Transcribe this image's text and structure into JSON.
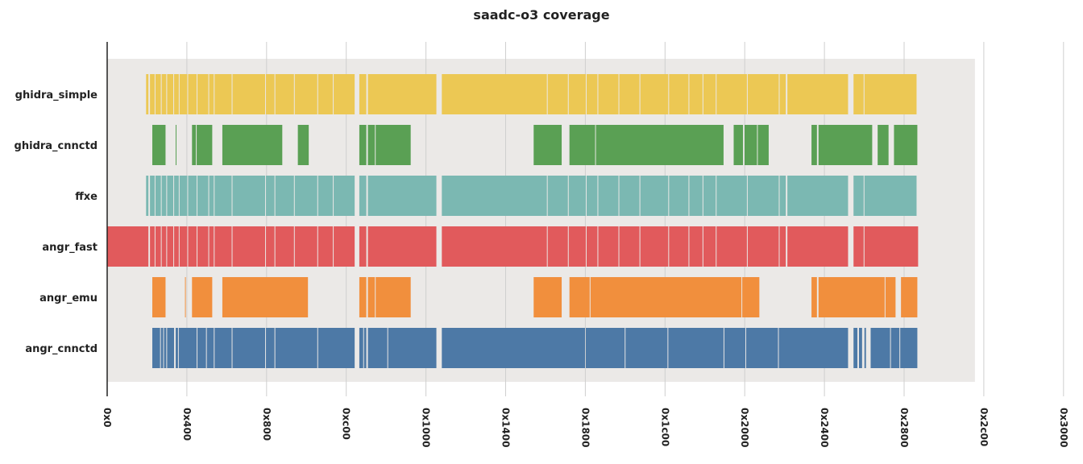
{
  "chart_data": {
    "type": "bar",
    "orientation": "horizontal-intervals",
    "title": "saadc-o3 coverage",
    "xlabel": "",
    "ylabel": "",
    "xlim": [
      0,
      12288
    ],
    "grid": true,
    "legend": "none",
    "x_ticks": [
      {
        "value": 0,
        "label": "0x0"
      },
      {
        "value": 1024,
        "label": "0x400"
      },
      {
        "value": 2048,
        "label": "0x800"
      },
      {
        "value": 3072,
        "label": "0xc00"
      },
      {
        "value": 4096,
        "label": "0x1000"
      },
      {
        "value": 5120,
        "label": "0x1400"
      },
      {
        "value": 6144,
        "label": "0x1800"
      },
      {
        "value": 7168,
        "label": "0x1c00"
      },
      {
        "value": 8192,
        "label": "0x2000"
      },
      {
        "value": 9216,
        "label": "0x2400"
      },
      {
        "value": 10240,
        "label": "0x2800"
      },
      {
        "value": 11264,
        "label": "0x2c00"
      },
      {
        "value": 12288,
        "label": "0x3000"
      }
    ],
    "background_range": [
      0,
      11150
    ],
    "series": [
      {
        "name": "ghidra_simple",
        "color": "#ecc854",
        "segments": [
          [
            500,
            530
          ],
          [
            550,
            610
          ],
          [
            620,
            690
          ],
          [
            700,
            760
          ],
          [
            770,
            850
          ],
          [
            860,
            920
          ],
          [
            930,
            1030
          ],
          [
            1040,
            1150
          ],
          [
            1160,
            1300
          ],
          [
            1310,
            1370
          ],
          [
            1380,
            1600
          ],
          [
            1610,
            2030
          ],
          [
            2040,
            2150
          ],
          [
            2160,
            2400
          ],
          [
            2410,
            2700
          ],
          [
            2710,
            2900
          ],
          [
            2910,
            3180
          ],
          [
            3240,
            3330
          ],
          [
            3350,
            4230
          ],
          [
            4300,
            5650
          ],
          [
            5660,
            5920
          ],
          [
            5930,
            6150
          ],
          [
            6160,
            6300
          ],
          [
            6310,
            6570
          ],
          [
            6580,
            6840
          ],
          [
            6850,
            7210
          ],
          [
            7220,
            7470
          ],
          [
            7480,
            7650
          ],
          [
            7660,
            7820
          ],
          [
            7830,
            8220
          ],
          [
            8230,
            8630
          ],
          [
            8640,
            8720
          ],
          [
            8740,
            9520
          ],
          [
            9590,
            9720
          ],
          [
            9730,
            10400
          ]
        ]
      },
      {
        "name": "ghidra_cnnctd",
        "color": "#5aa054",
        "segments": [
          [
            580,
            750
          ],
          [
            880,
            890
          ],
          [
            1090,
            1140
          ],
          [
            1150,
            1350
          ],
          [
            1480,
            2250
          ],
          [
            2450,
            2590
          ],
          [
            3240,
            3330
          ],
          [
            3350,
            3440
          ],
          [
            3450,
            3900
          ],
          [
            5480,
            5840
          ],
          [
            5940,
            6270
          ],
          [
            6280,
            7920
          ],
          [
            8050,
            8170
          ],
          [
            8190,
            8350
          ],
          [
            8360,
            8500
          ],
          [
            9050,
            9120
          ],
          [
            9140,
            9830
          ],
          [
            9900,
            10040
          ],
          [
            10110,
            10410
          ]
        ]
      },
      {
        "name": "ffxe",
        "color": "#7bb8b2",
        "segments": [
          [
            500,
            530
          ],
          [
            550,
            610
          ],
          [
            620,
            690
          ],
          [
            700,
            760
          ],
          [
            770,
            850
          ],
          [
            860,
            920
          ],
          [
            930,
            1030
          ],
          [
            1040,
            1150
          ],
          [
            1160,
            1300
          ],
          [
            1310,
            1370
          ],
          [
            1380,
            1600
          ],
          [
            1610,
            2030
          ],
          [
            2040,
            2150
          ],
          [
            2160,
            2400
          ],
          [
            2410,
            2700
          ],
          [
            2710,
            2900
          ],
          [
            2910,
            3180
          ],
          [
            3240,
            3330
          ],
          [
            3350,
            4230
          ],
          [
            4300,
            5650
          ],
          [
            5660,
            5920
          ],
          [
            5930,
            6150
          ],
          [
            6160,
            6300
          ],
          [
            6310,
            6570
          ],
          [
            6580,
            6840
          ],
          [
            6850,
            7210
          ],
          [
            7220,
            7470
          ],
          [
            7480,
            7650
          ],
          [
            7660,
            7820
          ],
          [
            7830,
            8220
          ],
          [
            8230,
            8630
          ],
          [
            8640,
            8720
          ],
          [
            8740,
            9520
          ],
          [
            9590,
            9720
          ],
          [
            9730,
            10400
          ]
        ]
      },
      {
        "name": "angr_fast",
        "color": "#e15a5c",
        "segments": [
          [
            0,
            530
          ],
          [
            550,
            610
          ],
          [
            620,
            690
          ],
          [
            700,
            760
          ],
          [
            770,
            850
          ],
          [
            860,
            920
          ],
          [
            930,
            1030
          ],
          [
            1040,
            1150
          ],
          [
            1160,
            1300
          ],
          [
            1310,
            1370
          ],
          [
            1380,
            1600
          ],
          [
            1610,
            2030
          ],
          [
            2040,
            2150
          ],
          [
            2160,
            2400
          ],
          [
            2410,
            2700
          ],
          [
            2710,
            2900
          ],
          [
            2910,
            3180
          ],
          [
            3240,
            3330
          ],
          [
            3350,
            4230
          ],
          [
            4300,
            5650
          ],
          [
            5660,
            5920
          ],
          [
            5930,
            6150
          ],
          [
            6160,
            6300
          ],
          [
            6310,
            6570
          ],
          [
            6580,
            6840
          ],
          [
            6850,
            7210
          ],
          [
            7220,
            7470
          ],
          [
            7480,
            7650
          ],
          [
            7660,
            7820
          ],
          [
            7830,
            8220
          ],
          [
            8230,
            8630
          ],
          [
            8640,
            8720
          ],
          [
            8740,
            9520
          ],
          [
            9590,
            9720
          ],
          [
            9730,
            10420
          ]
        ]
      },
      {
        "name": "angr_emu",
        "color": "#f18f3d",
        "segments": [
          [
            580,
            750
          ],
          [
            1000,
            1010
          ],
          [
            1090,
            1350
          ],
          [
            1480,
            2580
          ],
          [
            3240,
            3330
          ],
          [
            3350,
            3440
          ],
          [
            3450,
            3900
          ],
          [
            5480,
            5840
          ],
          [
            5940,
            6200
          ],
          [
            6210,
            8150
          ],
          [
            8160,
            8380
          ],
          [
            9050,
            9120
          ],
          [
            9140,
            9990
          ],
          [
            10000,
            10130
          ],
          [
            10200,
            10410
          ]
        ]
      },
      {
        "name": "angr_cnnctd",
        "color": "#4d79a6",
        "segments": [
          [
            580,
            680
          ],
          [
            690,
            720
          ],
          [
            730,
            760
          ],
          [
            770,
            860
          ],
          [
            880,
            910
          ],
          [
            920,
            1150
          ],
          [
            1160,
            1270
          ],
          [
            1280,
            1370
          ],
          [
            1380,
            1600
          ],
          [
            1610,
            2030
          ],
          [
            2040,
            2150
          ],
          [
            2160,
            2700
          ],
          [
            2710,
            3180
          ],
          [
            3240,
            3290
          ],
          [
            3300,
            3330
          ],
          [
            3350,
            3600
          ],
          [
            3610,
            4230
          ],
          [
            4300,
            6140
          ],
          [
            6150,
            6650
          ],
          [
            6660,
            7200
          ],
          [
            7210,
            7920
          ],
          [
            7930,
            8200
          ],
          [
            8210,
            8620
          ],
          [
            8630,
            9520
          ],
          [
            9590,
            9640
          ],
          [
            9660,
            9700
          ],
          [
            9730,
            9750
          ],
          [
            9810,
            10060
          ],
          [
            10070,
            10180
          ],
          [
            10190,
            10410
          ]
        ]
      }
    ]
  }
}
